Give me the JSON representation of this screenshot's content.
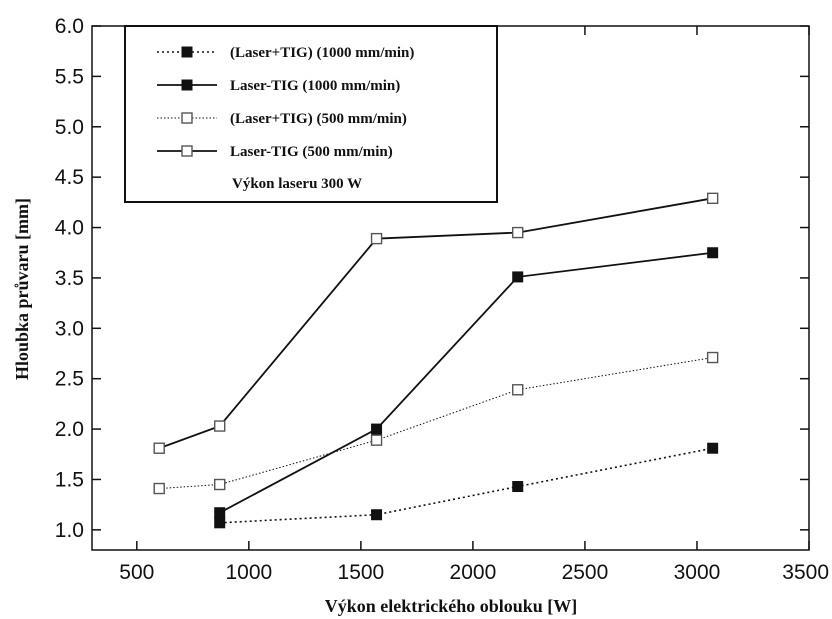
{
  "chart_data": {
    "type": "line",
    "xlabel": "Výkon elektrického oblouku [W]",
    "ylabel": "Hloubka průvaru [mm]",
    "xlim": [
      300,
      3500
    ],
    "ylim": [
      0.8,
      6.0
    ],
    "x_ticks": [
      500,
      1000,
      1500,
      2000,
      2500,
      3000,
      3500
    ],
    "y_ticks": [
      "1.0",
      "1.5",
      "2.0",
      "2.5",
      "3.0",
      "3.5",
      "4.0",
      "4.5",
      "5.0",
      "5.5",
      "6.0"
    ],
    "grid": false,
    "legend_position": "top-left",
    "legend_note": "Výkon laseru 300 W",
    "series": [
      {
        "name": "(Laser+TIG) (1000 mm/min)",
        "line": "dotted",
        "marker": "filled-square",
        "points": [
          [
            870,
            1.07
          ],
          [
            1570,
            1.15
          ],
          [
            2200,
            1.43
          ],
          [
            3070,
            1.81
          ]
        ]
      },
      {
        "name": "Laser-TIG (1000 mm/min)",
        "line": "solid",
        "marker": "filled-square",
        "points": [
          [
            870,
            1.17
          ],
          [
            1570,
            2.0
          ],
          [
            2200,
            3.51
          ],
          [
            3070,
            3.75
          ]
        ]
      },
      {
        "name": "(Laser+TIG) (500 mm/min)",
        "line": "thin-dotted",
        "marker": "open-square",
        "points": [
          [
            600,
            1.41
          ],
          [
            870,
            1.45
          ],
          [
            1570,
            1.89
          ],
          [
            2200,
            2.39
          ],
          [
            3070,
            2.71
          ]
        ]
      },
      {
        "name": "Laser-TIG (500 mm/min)",
        "line": "solid",
        "marker": "open-square",
        "points": [
          [
            600,
            1.81
          ],
          [
            870,
            2.03
          ],
          [
            1570,
            3.89
          ],
          [
            2200,
            3.95
          ],
          [
            3070,
            4.29
          ]
        ]
      }
    ]
  }
}
